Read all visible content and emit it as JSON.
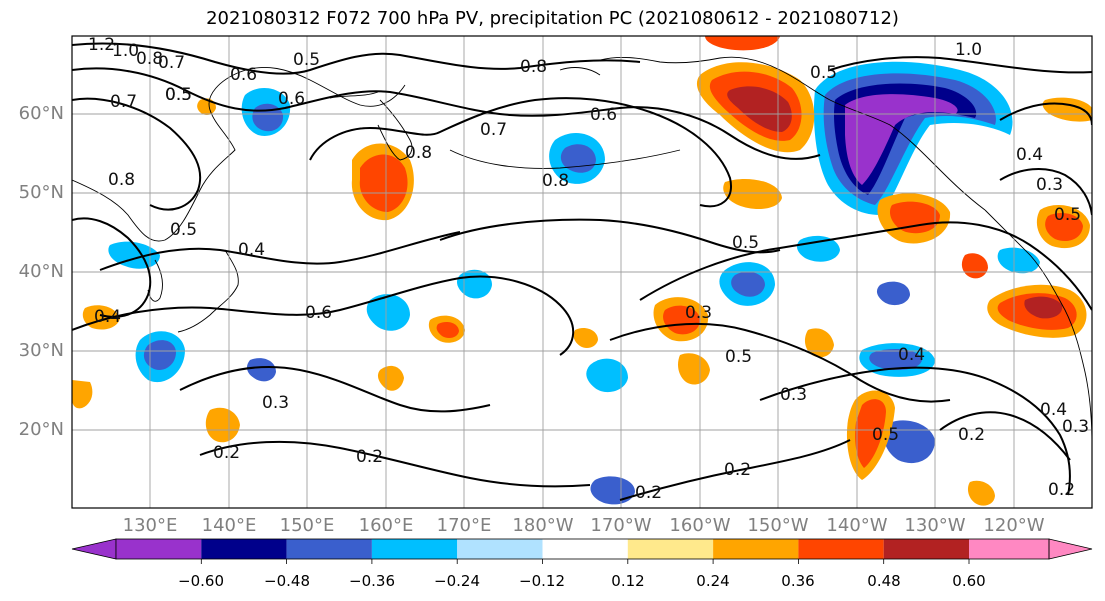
{
  "title": "2021080312 F072 700 hPa PV, precipitation PC (2021080612 - 2021080712)",
  "lat_labels": [
    "60°N",
    "50°N",
    "40°N",
    "30°N",
    "20°N"
  ],
  "lon_labels": [
    "130°E",
    "140°E",
    "150°E",
    "160°E",
    "170°E",
    "180°W",
    "170°W",
    "160°W",
    "150°W",
    "140°W",
    "130°W",
    "120°W"
  ],
  "colorbar": {
    "ticks": [
      "−0.60",
      "−0.48",
      "−0.36",
      "−0.24",
      "−0.12",
      "0.12",
      "0.24",
      "0.36",
      "0.48",
      "0.60"
    ],
    "colors": [
      "#9932cc",
      "#00008b",
      "#3a5fcd",
      "#00bfff",
      "#b0e2ff",
      "#ffffff",
      "#ffe98c",
      "#ffa500",
      "#ff4500",
      "#b22222",
      "#ff88c2"
    ]
  },
  "contour_labels": [
    "1.2",
    "1.0",
    "0.8",
    "0.7",
    "0.5",
    "0.6",
    "0.7",
    "0.5",
    "0.8",
    "0.6",
    "0.7",
    "0.8",
    "0.8",
    "0.5",
    "1.0",
    "0.6",
    "0.5",
    "0.8",
    "0.5",
    "0.5",
    "0.4",
    "0.6",
    "0.3",
    "0.5",
    "0.4",
    "0.3",
    "0.3",
    "0.2",
    "0.2",
    "0.2",
    "0.2",
    "0.5",
    "0.2",
    "0.4",
    "0.3",
    "0.3",
    "0.2",
    "0.5",
    "0.4",
    "0.4"
  ]
}
